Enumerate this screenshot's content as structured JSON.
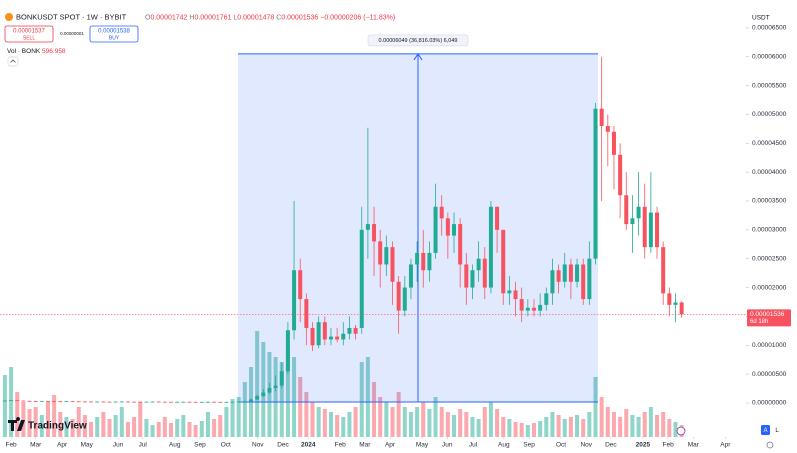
{
  "header": {
    "symbol": "BONKUSDT SPOT · 1W · BYBIT",
    "ohlc": [
      {
        "k": "O",
        "v": "0.00001742"
      },
      {
        "k": "H",
        "v": "0.00001761"
      },
      {
        "k": "L",
        "v": "0.00001478"
      },
      {
        "k": "C",
        "v": "0.00001536"
      }
    ],
    "change": "−0.00000206 (−11.83%)",
    "sell_price": "0.00001537",
    "sell": "SELL",
    "spread": "0.00000001",
    "buy_price": "0.00001538",
    "buy": "BUY",
    "volume_legend": "Vol · BONK",
    "volume_value": "596.958",
    "currency": "USDT",
    "logo": "TradingView",
    "scale_buttons": [
      "A",
      "L"
    ]
  },
  "chart_data": {
    "type": "candlestick",
    "up_color": "#22ab94",
    "down_color": "#f7525f",
    "open": [
      3e-07,
      4e-07,
      5e-07,
      4e-07,
      3.5e-07,
      3.2e-07,
      3e-07,
      3.4e-07,
      3e-07,
      2.8e-07,
      2.6e-07,
      3e-07,
      2.7e-07,
      2.5e-07,
      2.4e-07,
      2.2e-07,
      2.3e-07,
      2.1e-07,
      2e-07,
      2.2e-07,
      2.4e-07,
      2.1e-07,
      2e-07,
      1.9e-07,
      2.1e-07,
      2.3e-07,
      2e-07,
      1.9e-07,
      1.8e-07,
      1.9e-07,
      2e-07,
      1.8e-07,
      1.7e-07,
      1.8e-07,
      1.9e-07,
      1.7e-07,
      1.65e-07,
      1.7e-07,
      2e-07,
      2.5e-07,
      3e-07,
      6e-07,
      1.2e-06,
      1.8e-06,
      2.6e-06,
      3e-06,
      5.5e-06,
      1.26e-05,
      2.3e-05,
      1.8e-05,
      1.3e-05,
      1e-05,
      1.4e-05,
      1.1e-05,
      1.15e-05,
      1.1e-05,
      1.2e-05,
      1.3e-05,
      1.3e-05,
      3e-05,
      3.1e-05,
      2.8e-05,
      2.4e-05,
      2.7e-05,
      2.1e-05,
      1.6e-05,
      2e-05,
      2.4e-05,
      2.6e-05,
      2.3e-05,
      2.6e-05,
      3.4e-05,
      3.2e-05,
      2.9e-05,
      3.1e-05,
      2.4e-05,
      2e-05,
      2.3e-05,
      2.5e-05,
      2e-05,
      3.4e-05,
      3e-05,
      1.9e-05,
      1.95e-05,
      1.8e-05,
      1.6e-05,
      1.65e-05,
      1.6e-05,
      1.7e-05,
      1.9e-05,
      2.3e-05,
      2.1e-05,
      2.4e-05,
      2.1e-05,
      2.4e-05,
      1.8e-05,
      2.5e-05,
      5.1e-05,
      4.8e-05,
      4.7e-05,
      4.3e-05,
      3.6e-05,
      3.1e-05,
      3.2e-05,
      3.4e-05,
      2.7e-05,
      3.3e-05,
      2.7e-05,
      1.9e-05,
      1.7e-05,
      1.742e-05
    ],
    "high": [
      4.5e-07,
      5.5e-07,
      5.5e-07,
      4.5e-07,
      4e-07,
      3.7e-07,
      3.9e-07,
      3.9e-07,
      3.5e-07,
      3.3e-07,
      3.5e-07,
      3.5e-07,
      3.2e-07,
      3e-07,
      2.9e-07,
      2.8e-07,
      2.8e-07,
      2.6e-07,
      2.7e-07,
      2.9e-07,
      2.9e-07,
      2.6e-07,
      2.5e-07,
      2.6e-07,
      2.8e-07,
      2.8e-07,
      2.5e-07,
      2.4e-07,
      2.4e-07,
      2.5e-07,
      2.5e-07,
      2.3e-07,
      2.3e-07,
      2.4e-07,
      2.4e-07,
      2.2e-07,
      2.2e-07,
      2.5e-07,
      3e-07,
      3.5e-07,
      8e-07,
      1.5e-06,
      2.4e-06,
      3.5e-06,
      4.8e-06,
      7e-06,
      1.4e-05,
      3.5e-05,
      2.5e-05,
      1.9e-05,
      1.4e-05,
      1.5e-05,
      1.5e-05,
      1.3e-05,
      1.3e-05,
      1.4e-05,
      1.5e-05,
      1.35e-05,
      3.4e-05,
      4.77e-05,
      3.4e-05,
      3e-05,
      2.9e-05,
      2.8e-05,
      2.2e-05,
      2.2e-05,
      2.5e-05,
      2.8e-05,
      3e-05,
      2.8e-05,
      3.8e-05,
      3.6e-05,
      3.3e-05,
      3.3e-05,
      3.2e-05,
      2.6e-05,
      2.4e-05,
      2.8e-05,
      2.7e-05,
      3.5e-05,
      3.4e-05,
      3e-05,
      2.2e-05,
      2.1e-05,
      2e-05,
      1.8e-05,
      1.8e-05,
      1.9e-05,
      2e-05,
      2.5e-05,
      2.4e-05,
      2.6e-05,
      2.5e-05,
      2.5e-05,
      2.5e-05,
      2.8e-05,
      5.2e-05,
      6e-05,
      5e-05,
      4.8e-05,
      4.5e-05,
      4e-05,
      3.6e-05,
      4e-05,
      3.8e-05,
      4e-05,
      3.4e-05,
      2.8e-05,
      2e-05,
      1.9e-05,
      1.761e-05
    ],
    "low": [
      2.7e-07,
      3.7e-07,
      3.7e-07,
      3.7e-07,
      3.2e-07,
      2.9e-07,
      2.7e-07,
      2.7e-07,
      2.7e-07,
      2.3e-07,
      2.3e-07,
      2.4e-07,
      2.2e-07,
      2.1e-07,
      1.9e-07,
      1.9e-07,
      1.8e-07,
      1.7e-07,
      1.7e-07,
      1.9e-07,
      1.8e-07,
      1.7e-07,
      1.6e-07,
      1.6e-07,
      1.8e-07,
      1.7e-07,
      1.6e-07,
      1.5e-07,
      1.5e-07,
      1.6e-07,
      1.5e-07,
      1.4e-07,
      1.4e-07,
      1.5e-07,
      1.4e-07,
      1.35e-07,
      1.35e-07,
      1.4e-07,
      1.5e-07,
      2e-07,
      2.8e-07,
      5e-07,
      1e-06,
      1.5e-06,
      2e-06,
      2.5e-06,
      5e-06,
      1.1e-05,
      1.4e-05,
      1e-05,
      9e-06,
      9.5e-06,
      1e-05,
      1e-05,
      1.05e-05,
      1e-05,
      1.1e-05,
      1.1e-05,
      1.2e-05,
      2.5e-05,
      2.2e-05,
      2e-05,
      2.2e-05,
      1.7e-05,
      1.2e-05,
      1.5e-05,
      1.8e-05,
      2.1e-05,
      2e-05,
      2.1e-05,
      2.5e-05,
      2.9e-05,
      2.5e-05,
      2.6e-05,
      2e-05,
      1.7e-05,
      1.8e-05,
      2.1e-05,
      1.8e-05,
      1.9e-05,
      2.6e-05,
      1.7e-05,
      1.7e-05,
      1.5e-05,
      1.4e-05,
      1.5e-05,
      1.5e-05,
      1.5e-05,
      1.6e-05,
      1.7e-05,
      1.9e-05,
      2e-05,
      1.8e-05,
      2e-05,
      1.7e-05,
      1.7e-05,
      2.4e-05,
      3.5e-05,
      4.1e-05,
      3.7e-05,
      3.2e-05,
      3e-05,
      2.6e-05,
      2.9e-05,
      2.5e-05,
      2.6e-05,
      2.5e-05,
      1.7e-05,
      1.5e-05,
      1.4e-05,
      1.478e-05
    ],
    "close": [
      4e-07,
      5e-07,
      4e-07,
      3.5e-07,
      3.2e-07,
      3e-07,
      3.4e-07,
      3e-07,
      2.8e-07,
      2.6e-07,
      3e-07,
      2.7e-07,
      2.5e-07,
      2.4e-07,
      2.2e-07,
      2.3e-07,
      2.1e-07,
      2e-07,
      2.2e-07,
      2.4e-07,
      2.1e-07,
      2e-07,
      1.9e-07,
      2.1e-07,
      2.3e-07,
      2e-07,
      1.9e-07,
      1.8e-07,
      1.9e-07,
      2e-07,
      1.8e-07,
      1.7e-07,
      1.8e-07,
      1.9e-07,
      1.7e-07,
      1.65e-07,
      1.7e-07,
      2e-07,
      2.5e-07,
      3e-07,
      6e-07,
      1.2e-06,
      1.8e-06,
      2.6e-06,
      3e-06,
      5.5e-06,
      1.26e-05,
      2.3e-05,
      1.8e-05,
      1.3e-05,
      1e-05,
      1.4e-05,
      1.1e-05,
      1.15e-05,
      1.1e-05,
      1.2e-05,
      1.3e-05,
      1.2e-05,
      3e-05,
      3.1e-05,
      2.8e-05,
      2.4e-05,
      2.7e-05,
      2.1e-05,
      1.6e-05,
      2e-05,
      2.4e-05,
      2.6e-05,
      2.3e-05,
      2.6e-05,
      3.4e-05,
      3.2e-05,
      2.9e-05,
      3.1e-05,
      2.4e-05,
      2e-05,
      2.3e-05,
      2.5e-05,
      2e-05,
      3.4e-05,
      3e-05,
      1.9e-05,
      1.95e-05,
      1.8e-05,
      1.6e-05,
      1.65e-05,
      1.6e-05,
      1.7e-05,
      1.9e-05,
      2.3e-05,
      2.1e-05,
      2.4e-05,
      2.1e-05,
      2.4e-05,
      1.8e-05,
      2.5e-05,
      5.1e-05,
      4.8e-05,
      4.7e-05,
      4.3e-05,
      3.6e-05,
      3.1e-05,
      3.2e-05,
      3.4e-05,
      2.7e-05,
      3.3e-05,
      2.7e-05,
      1.9e-05,
      1.7e-05,
      1.742e-05,
      1.536e-05
    ],
    "volume": [
      62,
      70,
      45,
      35,
      28,
      30,
      22,
      35,
      42,
      25,
      20,
      18,
      30,
      22,
      15,
      20,
      25,
      18,
      22,
      30,
      15,
      20,
      35,
      18,
      12,
      15,
      20,
      14,
      18,
      22,
      15,
      12,
      16,
      25,
      18,
      22,
      30,
      38,
      40,
      55,
      70,
      106,
      95,
      85,
      80,
      75,
      90,
      80,
      60,
      45,
      35,
      30,
      28,
      25,
      22,
      20,
      25,
      30,
      75,
      80,
      55,
      40,
      35,
      30,
      45,
      30,
      25,
      30,
      35,
      28,
      40,
      30,
      25,
      22,
      28,
      25,
      20,
      18,
      30,
      35,
      28,
      20,
      18,
      15,
      14,
      12,
      14,
      16,
      20,
      25,
      22,
      18,
      20,
      22,
      18,
      25,
      60,
      40,
      30,
      25,
      20,
      28,
      22,
      20,
      25,
      30,
      22,
      25,
      18,
      15,
      12
    ],
    "vlim": [
      0,
      110
    ],
    "xlim": [
      -0.8,
      120.3
    ],
    "xticks": [
      {
        "value": 1,
        "label": "Feb"
      },
      {
        "value": 5,
        "label": "Mar"
      },
      {
        "value": 9.3,
        "label": "Apr"
      },
      {
        "value": 13.3,
        "label": "May"
      },
      {
        "value": 18.4,
        "label": "Jun"
      },
      {
        "value": 22.4,
        "label": "Jul"
      },
      {
        "value": 27.6,
        "label": "Aug"
      },
      {
        "value": 31.7,
        "label": "Sep"
      },
      {
        "value": 35.9,
        "label": "Oct"
      },
      {
        "value": 41.1,
        "label": "Nov"
      },
      {
        "value": 45.2,
        "label": "Dec"
      },
      {
        "value": 49.3,
        "label": "2024"
      },
      {
        "value": 54.5,
        "label": "Feb"
      },
      {
        "value": 58.5,
        "label": "Mar"
      },
      {
        "value": 62.6,
        "label": "Apr"
      },
      {
        "value": 67.8,
        "label": "May"
      },
      {
        "value": 71.9,
        "label": "Jun"
      },
      {
        "value": 76.1,
        "label": "Jul"
      },
      {
        "value": 81.1,
        "label": "Aug"
      },
      {
        "value": 85.2,
        "label": "Sep"
      },
      {
        "value": 90.4,
        "label": "Oct"
      },
      {
        "value": 94.5,
        "label": "Nov"
      },
      {
        "value": 98.5,
        "label": "Dec"
      },
      {
        "value": 103.7,
        "label": "2025"
      },
      {
        "value": 107.8,
        "label": "Feb"
      },
      {
        "value": 111.9,
        "label": "Mar"
      },
      {
        "value": 117.1,
        "label": "Apr"
      }
    ],
    "ylim": [
      -5.9e-06,
      6.81e-05
    ],
    "yticks": [
      {
        "value": 0,
        "label": "0.00000000"
      },
      {
        "value": 5e-06,
        "label": "0.00000500"
      },
      {
        "value": 1e-05,
        "label": "0.00001000"
      },
      {
        "value": 1.5e-05,
        "label": "0.00001500"
      },
      {
        "value": 2e-05,
        "label": "0.00002000"
      },
      {
        "value": 2.5e-05,
        "label": "0.00002500"
      },
      {
        "value": 3e-05,
        "label": "0.00003000"
      },
      {
        "value": 3.5e-05,
        "label": "0.00003500"
      },
      {
        "value": 4e-05,
        "label": "0.00004000"
      },
      {
        "value": 4.5e-05,
        "label": "0.00004500"
      },
      {
        "value": 5e-05,
        "label": "0.00005000"
      },
      {
        "value": 5.5e-05,
        "label": "0.00005500"
      },
      {
        "value": 6e-05,
        "label": "0.00006000"
      },
      {
        "value": 6.5e-05,
        "label": "0.00006500"
      }
    ],
    "last_price": {
      "value": 1.536e-05,
      "label": "0.00001536"
    },
    "countdown": "6d 18h",
    "measure": {
      "label": "0.00006049 (36,816.03%) 6,049",
      "low": 1.64e-07,
      "high": 6.049e-05
    }
  }
}
